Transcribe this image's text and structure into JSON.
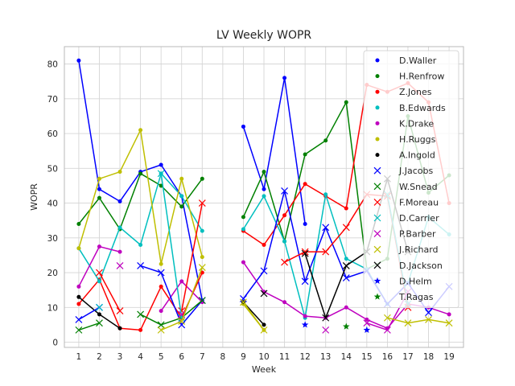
{
  "chart_data": {
    "type": "line",
    "title": "LV Weekly WOPR",
    "xlabel": "Week",
    "ylabel": "WOPR",
    "xlim": [
      0.3,
      19.7
    ],
    "ylim": [
      -1.5,
      85
    ],
    "x_ticks": [
      1,
      2,
      3,
      4,
      5,
      6,
      7,
      8,
      9,
      10,
      11,
      12,
      13,
      14,
      15,
      16,
      17,
      18,
      19
    ],
    "y_ticks": [
      0,
      10,
      20,
      30,
      40,
      50,
      60,
      70,
      80
    ],
    "grid": true,
    "legend_position": "upper-right",
    "series": [
      {
        "name": "D.Waller",
        "color": "#0000ff",
        "marker": "dot",
        "x": [
          1,
          2,
          3,
          4,
          5,
          6,
          7,
          9,
          10,
          11,
          12
        ],
        "y": [
          81,
          44,
          40.5,
          49,
          51,
          42,
          12,
          62,
          44,
          76,
          34
        ]
      },
      {
        "name": "H.Renfrow",
        "color": "#008000",
        "marker": "dot",
        "x": [
          1,
          2,
          3,
          4,
          5,
          6,
          7,
          9,
          10,
          11,
          12,
          13,
          14,
          15,
          16,
          17,
          18,
          19
        ],
        "y": [
          34,
          41.5,
          32.5,
          48.5,
          45,
          39,
          47,
          36,
          49,
          29,
          54,
          58,
          69,
          21,
          24,
          65,
          43,
          48
        ]
      },
      {
        "name": "Z.Jones",
        "color": "#ff0000",
        "marker": "dot",
        "x": [
          1,
          2,
          3,
          4,
          5,
          6,
          7,
          9,
          10,
          11,
          12,
          13,
          14,
          15,
          16,
          17,
          18,
          19
        ],
        "y": [
          11,
          18,
          4,
          3.5,
          16,
          7,
          20,
          32,
          28,
          36.5,
          45.5,
          42,
          38.5,
          74,
          72,
          74.5,
          69,
          40
        ]
      },
      {
        "name": "B.Edwards",
        "color": "#00bfbf",
        "marker": "dot",
        "x": [
          1,
          2,
          3,
          4,
          5,
          6,
          7,
          9,
          10,
          11,
          12,
          13,
          14,
          15,
          16,
          17,
          18,
          19
        ],
        "y": [
          27,
          17.5,
          33,
          28,
          48.5,
          42,
          32,
          32.5,
          42,
          29,
          7,
          42.5,
          24,
          21,
          11,
          17,
          36,
          31
        ]
      },
      {
        "name": "K.Drake",
        "color": "#bf00bf",
        "marker": "dot",
        "x": [
          1,
          2,
          3,
          5,
          6,
          7,
          9,
          10,
          11,
          12,
          13,
          14,
          15,
          16,
          17,
          18,
          19
        ],
        "y": [
          16,
          27.5,
          26,
          9,
          17.5,
          11.5,
          23,
          14.5,
          11.5,
          7.5,
          7,
          10,
          6.5,
          4,
          11,
          10,
          8
        ]
      },
      {
        "name": "H.Ruggs",
        "color": "#bfbf00",
        "marker": "dot",
        "x": [
          1,
          2,
          3,
          4,
          5,
          6,
          7,
          9,
          10
        ],
        "y": [
          27,
          47,
          49,
          61,
          22.5,
          47,
          24.5,
          11,
          3.5
        ]
      },
      {
        "name": "A.Ingold",
        "color": "#000000",
        "marker": "dot",
        "x": [
          1,
          2,
          3,
          9,
          10
        ],
        "y": [
          13,
          8,
          4,
          11.5,
          5
        ]
      },
      {
        "name": "J.Jacobs",
        "color": "#0000ff",
        "marker": "x",
        "x": [
          1,
          2,
          4,
          5,
          6,
          7,
          9,
          10,
          11,
          12,
          13,
          14,
          15,
          16,
          17,
          18,
          19
        ],
        "y": [
          6.5,
          10,
          22,
          20,
          5,
          12,
          12.5,
          20.5,
          43.5,
          17.5,
          33,
          18.5,
          20.5,
          11,
          17,
          8.5,
          16
        ]
      },
      {
        "name": "W.Snead",
        "color": "#008000",
        "marker": "x",
        "x": [
          1,
          2,
          4,
          5,
          6,
          7
        ],
        "y": [
          3.5,
          5.5,
          8,
          5,
          7,
          12
        ]
      },
      {
        "name": "F.Moreau",
        "color": "#ff0000",
        "marker": "x",
        "x": [
          2,
          3,
          6,
          7,
          11,
          12,
          13,
          14,
          15,
          16,
          17
        ],
        "y": [
          20,
          9,
          9,
          40,
          23,
          26,
          26,
          33,
          42.5,
          42,
          10
        ]
      },
      {
        "name": "D.Carrier",
        "color": "#00bfbf",
        "marker": "x",
        "x": [
          2,
          5,
          6,
          16,
          17
        ],
        "y": [
          10,
          48.5,
          7,
          42.5,
          11
        ]
      },
      {
        "name": "P.Barber",
        "color": "#bf00bf",
        "marker": "x",
        "x": [
          3,
          6,
          13,
          15,
          16,
          17
        ],
        "y": [
          22,
          8,
          3.5,
          5.5,
          3.5,
          14.5
        ]
      },
      {
        "name": "J.Richard",
        "color": "#bfbf00",
        "marker": "x",
        "x": [
          5,
          6,
          7,
          9,
          10,
          16,
          17,
          18,
          19
        ],
        "y": [
          3.5,
          6,
          21.5,
          11.5,
          3.5,
          7,
          5.5,
          6.5,
          5.5
        ]
      },
      {
        "name": "D.Jackson",
        "color": "#000000",
        "marker": "x",
        "x": [
          10,
          12,
          13,
          14,
          15,
          16,
          17
        ],
        "y": [
          14,
          25.5,
          7,
          22,
          26,
          47,
          26
        ]
      },
      {
        "name": "D.Helm",
        "color": "#0000ff",
        "marker": "star",
        "x": [
          12,
          15
        ],
        "y": [
          5,
          3.5
        ]
      },
      {
        "name": "T.Ragas",
        "color": "#008000",
        "marker": "star",
        "x": [
          14
        ],
        "y": [
          4.5
        ]
      }
    ]
  }
}
